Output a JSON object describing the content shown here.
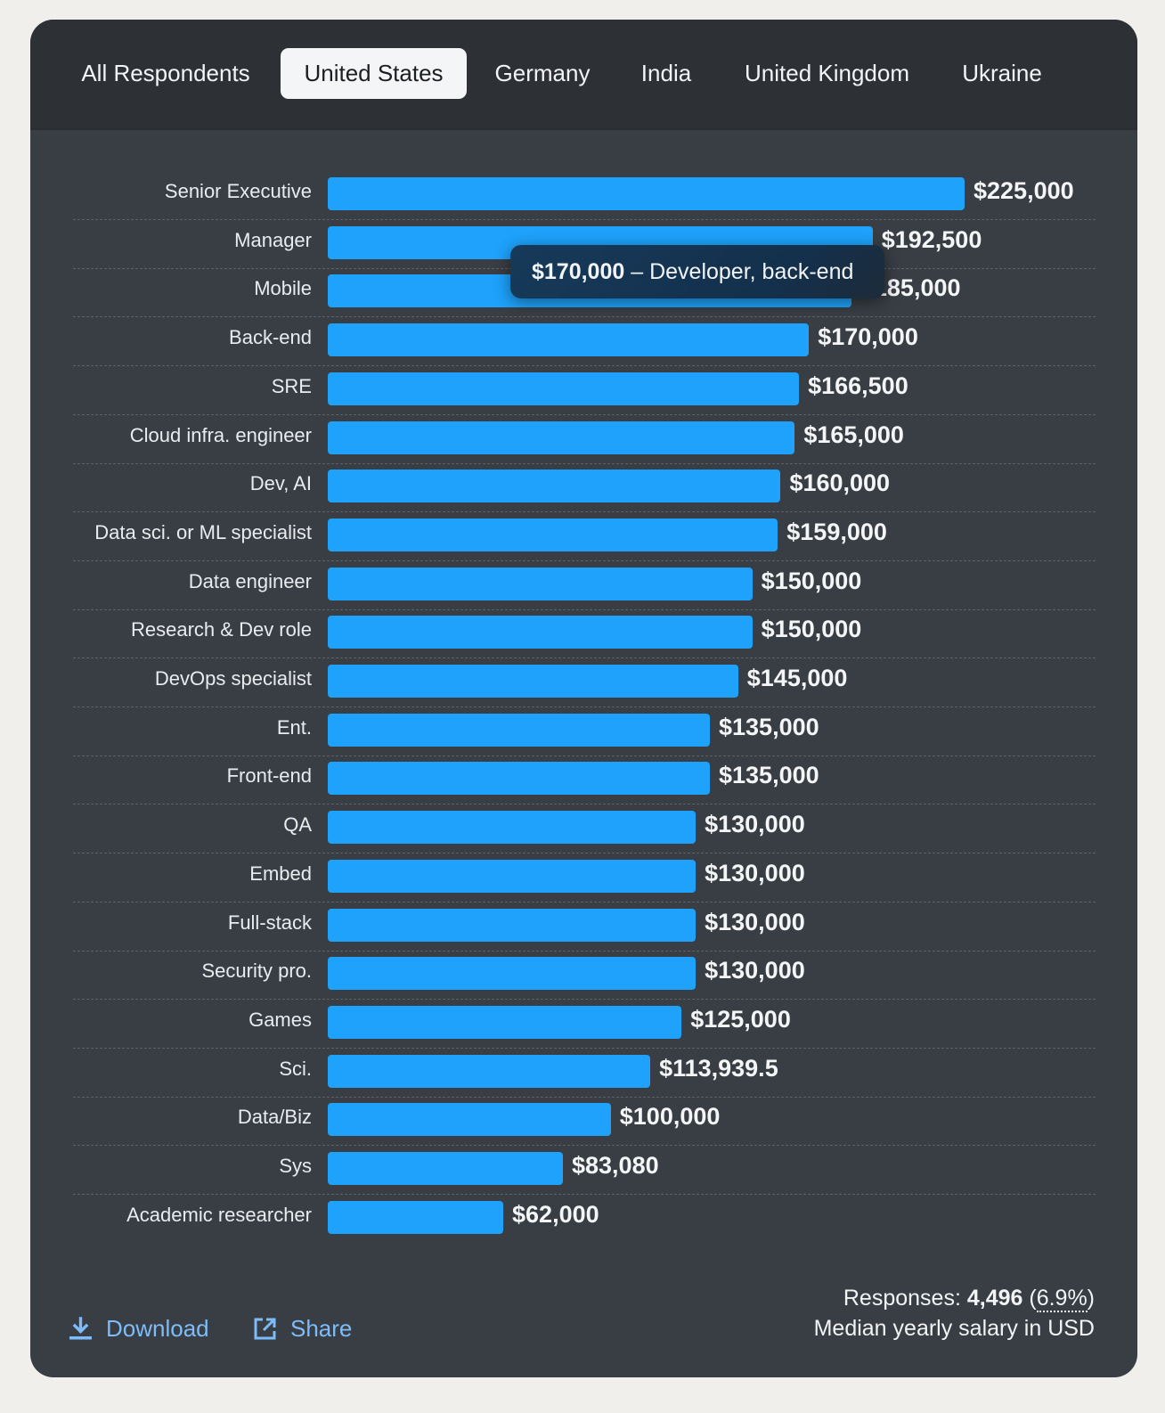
{
  "tabs": [
    {
      "label": "All Respondents",
      "active": false
    },
    {
      "label": "United States",
      "active": true
    },
    {
      "label": "Germany",
      "active": false
    },
    {
      "label": "India",
      "active": false
    },
    {
      "label": "United Kingdom",
      "active": false
    },
    {
      "label": "Ukraine",
      "active": false
    }
  ],
  "chart_data": {
    "type": "bar",
    "orientation": "horizontal",
    "title": "",
    "xlabel": "Median yearly salary in USD",
    "ylabel": "",
    "xlim": [
      0,
      225000
    ],
    "categories": [
      "Senior Executive",
      "Manager",
      "Mobile",
      "Back-end",
      "SRE",
      "Cloud infra. engineer",
      "Dev, AI",
      "Data sci. or ML specialist",
      "Data engineer",
      "Research & Dev role",
      "DevOps specialist",
      "Ent.",
      "Front-end",
      "QA",
      "Embed",
      "Full-stack",
      "Security pro.",
      "Games",
      "Sci.",
      "Data/Biz",
      "Sys",
      "Academic researcher"
    ],
    "values": [
      225000,
      192500,
      185000,
      170000,
      166500,
      165000,
      160000,
      159000,
      150000,
      150000,
      145000,
      135000,
      135000,
      130000,
      130000,
      130000,
      130000,
      125000,
      113939.5,
      100000,
      83080,
      62000
    ],
    "value_labels": [
      "$225,000",
      "$192,500",
      "$185,000",
      "$170,000",
      "$166,500",
      "$165,000",
      "$160,000",
      "$159,000",
      "$150,000",
      "$150,000",
      "$145,000",
      "$135,000",
      "$135,000",
      "$130,000",
      "$130,000",
      "$130,000",
      "$130,000",
      "$125,000",
      "$113,939.5",
      "$100,000",
      "$83,080",
      "$62,000"
    ],
    "color": "#1ea2fb",
    "grid": false
  },
  "tooltip": {
    "value": "$170,000",
    "separator": " – ",
    "label": "Developer, back-end"
  },
  "footer": {
    "download_label": "Download",
    "share_label": "Share",
    "responses_label": "Responses: ",
    "responses_count": "4,496",
    "responses_open": " (",
    "responses_pct": "6.9%",
    "responses_close": ")",
    "caption": "Median yearly salary in USD"
  },
  "colors": {
    "card_bg": "#393e44",
    "tabbar_bg": "#2d3136",
    "bar": "#1ea2fb",
    "link": "#7dbcf8"
  }
}
